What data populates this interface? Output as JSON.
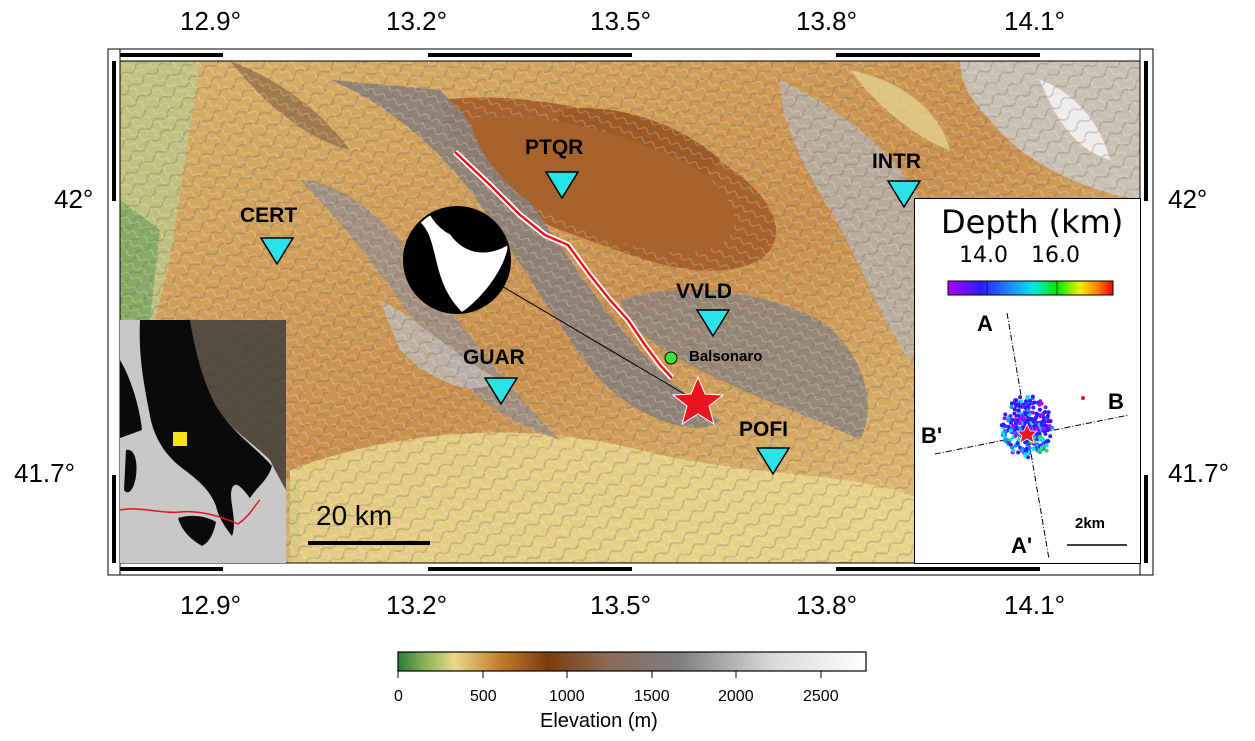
{
  "map": {
    "top_lon_labels": [
      "12.9°",
      "13.2°",
      "13.5°",
      "13.8°",
      "14.1°"
    ],
    "bottom_lon_labels": [
      "12.9°",
      "13.2°",
      "13.5°",
      "13.8°",
      "14.1°"
    ],
    "left_lat_labels": [
      "42°",
      "41.7°"
    ],
    "right_lat_labels": [
      "42°",
      "41.7°"
    ],
    "stations": [
      {
        "code": "PTQR"
      },
      {
        "code": "INTR"
      },
      {
        "code": "CERT"
      },
      {
        "code": "VVLD"
      },
      {
        "code": "GUAR"
      },
      {
        "code": "POFI"
      }
    ],
    "station_color": "#29e3e6",
    "epicenter_color": "#e8141e",
    "fault_color": "#e8141e",
    "town_label": "Balsonaro",
    "town_color": "#3fe03f",
    "scale_bar_label": "20 km",
    "inset_marker_color": "#f4e11a"
  },
  "depth_inset": {
    "title": "Depth (km)",
    "tick_labels": [
      "14.0",
      "16.0"
    ],
    "profile_labels": {
      "a": "A",
      "a_prime": "A'",
      "b": "B",
      "b_prime": "B'"
    },
    "scale_label": "2km"
  },
  "colorbar": {
    "tick_labels": [
      "0",
      "500",
      "1000",
      "1500",
      "2000",
      "2500"
    ],
    "label": "Elevation (m)"
  }
}
